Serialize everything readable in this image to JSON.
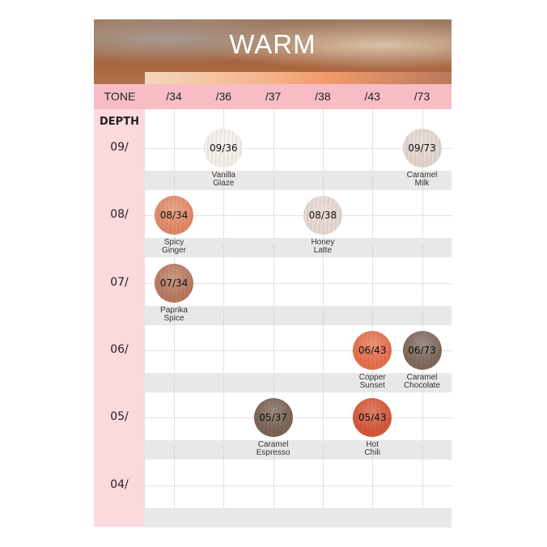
{
  "title": "WARM",
  "tone_label": "TONE",
  "depth_label": "DEPTH",
  "tones": [
    "/34",
    "/36",
    "/37",
    "/38",
    "/43",
    "/73"
  ],
  "depths": [
    "09/",
    "08/",
    "07/",
    "06/",
    "05/",
    "04/"
  ],
  "shades": [
    {
      "code": "09/36",
      "name": [
        "Vanilla",
        "Glaze"
      ],
      "depth": 0,
      "tone": 1,
      "color": "#f4efe9"
    },
    {
      "code": "09/73",
      "name": [
        "Caramel",
        "Milk"
      ],
      "depth": 0,
      "tone": 5,
      "color": "#e3d6cf"
    },
    {
      "code": "08/34",
      "name": [
        "Spicy",
        "Ginger"
      ],
      "depth": 1,
      "tone": 0,
      "color": "#e28a68"
    },
    {
      "code": "08/38",
      "name": [
        "Honey",
        "Latte"
      ],
      "depth": 1,
      "tone": 3,
      "color": "#e6d8d0"
    },
    {
      "code": "07/34",
      "name": [
        "Paprika",
        "Spice"
      ],
      "depth": 2,
      "tone": 0,
      "color": "#b97a60"
    },
    {
      "code": "06/43",
      "name": [
        "Copper",
        "Sunset"
      ],
      "depth": 3,
      "tone": 4,
      "color": "#e5704c"
    },
    {
      "code": "06/73",
      "name": [
        "Caramel",
        "Chocolate"
      ],
      "depth": 3,
      "tone": 5,
      "color": "#7f6a5e"
    },
    {
      "code": "05/37",
      "name": [
        "Caramel",
        "Espresso"
      ],
      "depth": 4,
      "tone": 2,
      "color": "#7c6456"
    },
    {
      "code": "05/43",
      "name": [
        "Hot",
        "Chili"
      ],
      "depth": 4,
      "tone": 4,
      "color": "#d4583a"
    }
  ]
}
